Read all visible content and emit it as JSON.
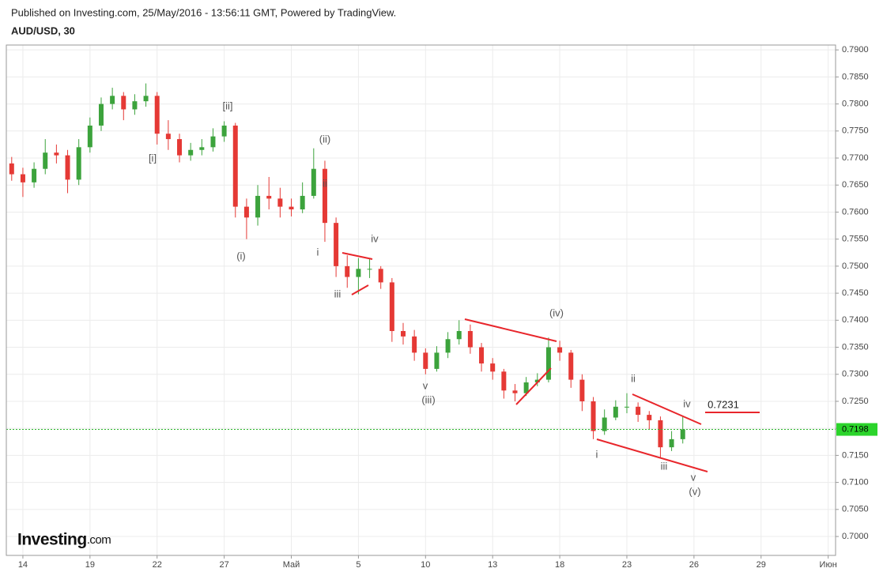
{
  "chart_data": {
    "type": "candlestick",
    "title": "Published on Investing.com, 25/May/2016 - 13:56:11 GMT, Powered by TradingView.",
    "subtitle": "AUD/USD, 30",
    "logo_suffix": ".com",
    "up_color": "#3ca33c",
    "down_color": "#e53935",
    "grid": true,
    "xlim": [
      -0.74,
      36.33
    ],
    "xticks": [
      {
        "value": 0,
        "label": "14"
      },
      {
        "value": 3,
        "label": "19"
      },
      {
        "value": 6,
        "label": "22"
      },
      {
        "value": 9,
        "label": "27"
      },
      {
        "value": 12,
        "label": "Май"
      },
      {
        "value": 15,
        "label": "5"
      },
      {
        "value": 18,
        "label": "10"
      },
      {
        "value": 21,
        "label": "13"
      },
      {
        "value": 24,
        "label": "18"
      },
      {
        "value": 27,
        "label": "23"
      },
      {
        "value": 30,
        "label": "26"
      },
      {
        "value": 33,
        "label": "29"
      },
      {
        "value": 36,
        "label": "Июн"
      }
    ],
    "ylim": [
      0.6965,
      0.7909
    ],
    "yticks": [
      {
        "value": 0.7,
        "label": "0.7000"
      },
      {
        "value": 0.705,
        "label": "0.7050"
      },
      {
        "value": 0.71,
        "label": "0.7100"
      },
      {
        "value": 0.715,
        "label": "0.7150"
      },
      {
        "value": 0.72,
        "label": "0.7200"
      },
      {
        "value": 0.725,
        "label": "0.7250"
      },
      {
        "value": 0.73,
        "label": "0.7300"
      },
      {
        "value": 0.735,
        "label": "0.7350"
      },
      {
        "value": 0.74,
        "label": "0.7400"
      },
      {
        "value": 0.745,
        "label": "0.7450"
      },
      {
        "value": 0.75,
        "label": "0.7500"
      },
      {
        "value": 0.755,
        "label": "0.7550"
      },
      {
        "value": 0.76,
        "label": "0.7600"
      },
      {
        "value": 0.765,
        "label": "0.7650"
      },
      {
        "value": 0.77,
        "label": "0.7700"
      },
      {
        "value": 0.775,
        "label": "0.7750"
      },
      {
        "value": 0.78,
        "label": "0.7800"
      },
      {
        "value": 0.785,
        "label": "0.7850"
      },
      {
        "value": 0.79,
        "label": "0.7900"
      }
    ],
    "current_price": {
      "value": 0.7198,
      "label": "0.7198"
    },
    "x": [
      -0.5,
      0,
      0.5,
      1,
      1.5,
      2,
      2.5,
      3,
      3.5,
      4,
      4.5,
      5,
      5.5,
      6,
      6.5,
      7,
      7.5,
      8,
      8.5,
      9,
      9.5,
      10,
      10.5,
      11,
      11.5,
      12,
      12.5,
      13,
      13.5,
      14,
      14.5,
      15,
      15.5,
      16,
      16.5,
      17,
      17.5,
      18,
      18.5,
      19,
      19.5,
      20,
      20.5,
      21,
      21.5,
      22,
      22.5,
      23,
      23.5,
      24,
      24.5,
      25,
      25.5,
      26,
      26.5,
      27,
      27.5,
      28,
      28.5,
      29,
      29.5
    ],
    "open": [
      0.769,
      0.767,
      0.7655,
      0.768,
      0.771,
      0.7705,
      0.766,
      0.772,
      0.776,
      0.78,
      0.7815,
      0.779,
      0.7805,
      0.7815,
      0.7745,
      0.7735,
      0.7705,
      0.7715,
      0.772,
      0.774,
      0.776,
      0.761,
      0.759,
      0.763,
      0.7625,
      0.761,
      0.7605,
      0.763,
      0.768,
      0.758,
      0.75,
      0.748,
      0.7495,
      0.7495,
      0.747,
      0.738,
      0.737,
      0.734,
      0.731,
      0.734,
      0.7365,
      0.738,
      0.735,
      0.732,
      0.7305,
      0.727,
      0.7265,
      0.7285,
      0.729,
      0.735,
      0.734,
      0.729,
      0.725,
      0.7195,
      0.722,
      0.724,
      0.724,
      0.7225,
      0.7215,
      0.7165,
      0.718
    ],
    "high": [
      0.7702,
      0.7682,
      0.7692,
      0.7735,
      0.7725,
      0.7715,
      0.7735,
      0.7775,
      0.7812,
      0.783,
      0.7822,
      0.7818,
      0.7838,
      0.7822,
      0.777,
      0.7745,
      0.7728,
      0.7735,
      0.7755,
      0.7768,
      0.7765,
      0.7625,
      0.765,
      0.7665,
      0.7645,
      0.7625,
      0.7655,
      0.7718,
      0.7695,
      0.759,
      0.752,
      0.7515,
      0.7515,
      0.75,
      0.7478,
      0.7395,
      0.7382,
      0.7348,
      0.7352,
      0.7378,
      0.74,
      0.7392,
      0.7358,
      0.733,
      0.731,
      0.7282,
      0.7295,
      0.7302,
      0.7368,
      0.7362,
      0.7345,
      0.73,
      0.7258,
      0.7235,
      0.7252,
      0.7265,
      0.7248,
      0.7232,
      0.7222,
      0.7195,
      0.7222
    ],
    "low": [
      0.7658,
      0.7628,
      0.7645,
      0.767,
      0.769,
      0.7635,
      0.765,
      0.771,
      0.775,
      0.779,
      0.777,
      0.778,
      0.7795,
      0.7725,
      0.7715,
      0.7692,
      0.7695,
      0.7705,
      0.7712,
      0.773,
      0.759,
      0.755,
      0.7575,
      0.7605,
      0.759,
      0.7592,
      0.7598,
      0.7625,
      0.7545,
      0.748,
      0.746,
      0.7448,
      0.7478,
      0.7458,
      0.736,
      0.7355,
      0.7325,
      0.73,
      0.7305,
      0.733,
      0.7355,
      0.7338,
      0.7305,
      0.729,
      0.7255,
      0.725,
      0.726,
      0.7278,
      0.7285,
      0.7325,
      0.7275,
      0.7232,
      0.718,
      0.7188,
      0.7215,
      0.7228,
      0.7212,
      0.7198,
      0.7145,
      0.7158,
      0.7172
    ],
    "close": [
      0.767,
      0.7655,
      0.768,
      0.771,
      0.7705,
      0.766,
      0.772,
      0.776,
      0.78,
      0.7815,
      0.779,
      0.7805,
      0.7815,
      0.7745,
      0.7735,
      0.7705,
      0.7715,
      0.772,
      0.774,
      0.776,
      0.761,
      0.759,
      0.763,
      0.7625,
      0.761,
      0.7605,
      0.763,
      0.768,
      0.758,
      0.75,
      0.748,
      0.7495,
      0.7495,
      0.747,
      0.738,
      0.737,
      0.734,
      0.731,
      0.734,
      0.7365,
      0.738,
      0.735,
      0.732,
      0.7305,
      0.727,
      0.7265,
      0.7285,
      0.729,
      0.735,
      0.734,
      0.729,
      0.725,
      0.7195,
      0.722,
      0.724,
      0.724,
      0.7225,
      0.7215,
      0.7165,
      0.718,
      0.7198
    ],
    "annotations": [
      "[ii]",
      "[i]",
      "(ii)",
      "ii",
      "(i)",
      "i",
      "iv",
      "iii",
      "v",
      "(iii)",
      "(iv)",
      "ii",
      "iv",
      "i",
      "iii",
      "v",
      "(v)",
      "0.7231"
    ]
  }
}
